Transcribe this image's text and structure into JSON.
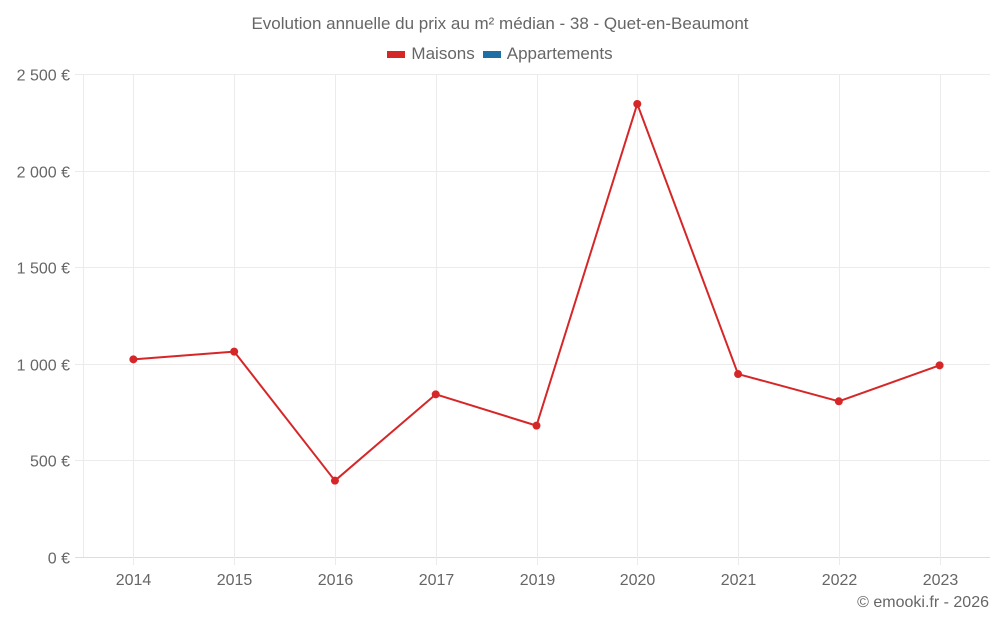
{
  "chart_data": {
    "type": "line",
    "title": "Evolution annuelle du prix au m² médian - 38 - Quet-en-Beaumont",
    "xlabel": "",
    "ylabel": "",
    "categories": [
      "2014",
      "2015",
      "2016",
      "2017",
      "2019",
      "2020",
      "2021",
      "2022",
      "2023"
    ],
    "series": [
      {
        "name": "Maisons",
        "color": "#d62728",
        "values": [
          1023,
          1063,
          395,
          842,
          680,
          2345,
          947,
          806,
          992
        ]
      },
      {
        "name": "Appartements",
        "color": "#1f6fa5",
        "values": []
      }
    ],
    "ylim": [
      0,
      2500
    ],
    "yticks": [
      0,
      500,
      1000,
      1500,
      2000,
      2500
    ],
    "ytick_labels": [
      "0 €",
      "500 €",
      "1 000 €",
      "1 500 €",
      "2 000 €",
      "2 500 €"
    ],
    "grid": true,
    "legend_position": "top"
  },
  "header": {
    "title": "Evolution annuelle du prix au m² médian - 38 - Quet-en-Beaumont"
  },
  "legend": {
    "items": [
      {
        "label": "Maisons",
        "color": "#d62728"
      },
      {
        "label": "Appartements",
        "color": "#1f6fa5"
      }
    ]
  },
  "footer": {
    "credit": "© emooki.fr - 2026"
  }
}
